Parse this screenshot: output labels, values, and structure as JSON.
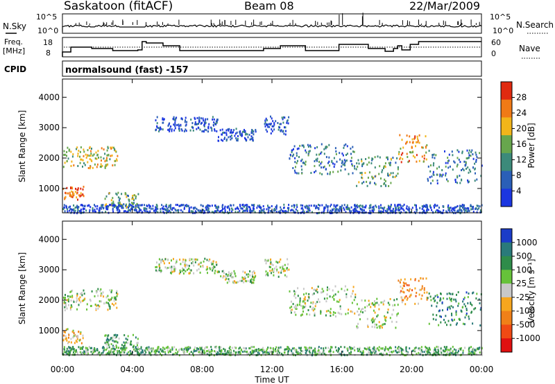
{
  "header": {
    "station": "Saskatoon (fitACF)",
    "beam": "Beam 08",
    "date": "22/Mar/2009"
  },
  "panels": {
    "nsky_label": "N.Sky",
    "nsky_tick_top": "10^5",
    "nsky_tick_bottom": "10^0",
    "nsearch_label": "N.Search",
    "nsearch_tick_top": "10^5",
    "nsearch_tick_bottom": "10^0",
    "freq_label_1": "Freq.",
    "freq_label_2": "[MHz]",
    "freq_tick_top": "18",
    "freq_tick_bottom": "8",
    "nave_label": "Nave",
    "nave_tick_top": "60",
    "nave_tick_bottom": "0",
    "cpid_label": "CPID",
    "cpid_value": "normalsound (fast) -157"
  },
  "chart_data": [
    {
      "type": "heatmap",
      "name": "power-panel",
      "ylabel": "Slant Range [km]",
      "ylim": [
        200,
        4600
      ],
      "yticks": [
        "1000",
        "2000",
        "3000",
        "4000"
      ],
      "colorbar_label": "Power [dB]",
      "colorbar_ticks": [
        "4",
        "8",
        "12",
        "16",
        "20",
        "24",
        "28"
      ],
      "colors": [
        "#1b36e0",
        "#2a5fb7",
        "#3c8a7a",
        "#67a64d",
        "#f2b51a",
        "#f07a16",
        "#e02a10"
      ]
    },
    {
      "type": "heatmap",
      "name": "velocity-panel",
      "ylabel": "Slant Range [km]",
      "ylim": [
        200,
        4600
      ],
      "yticks": [
        "1000",
        "2000",
        "3000",
        "4000"
      ],
      "colorbar_label": "Velocity [m s⁻¹]",
      "colorbar_ticks": [
        "1000",
        "500",
        "100",
        "25",
        "-25",
        "-100",
        "-500",
        "-1000"
      ],
      "colors": [
        "#1b3cc8",
        "#2a7a7a",
        "#2f8c4a",
        "#66c23a",
        "#c8c8c8",
        "#f6a61e",
        "#f08018",
        "#f04a14",
        "#e01010"
      ]
    }
  ],
  "xaxis": {
    "label": "Time UT",
    "ticks": [
      "00:00",
      "04:00",
      "08:00",
      "12:00",
      "16:00",
      "20:00",
      "00:00"
    ]
  }
}
